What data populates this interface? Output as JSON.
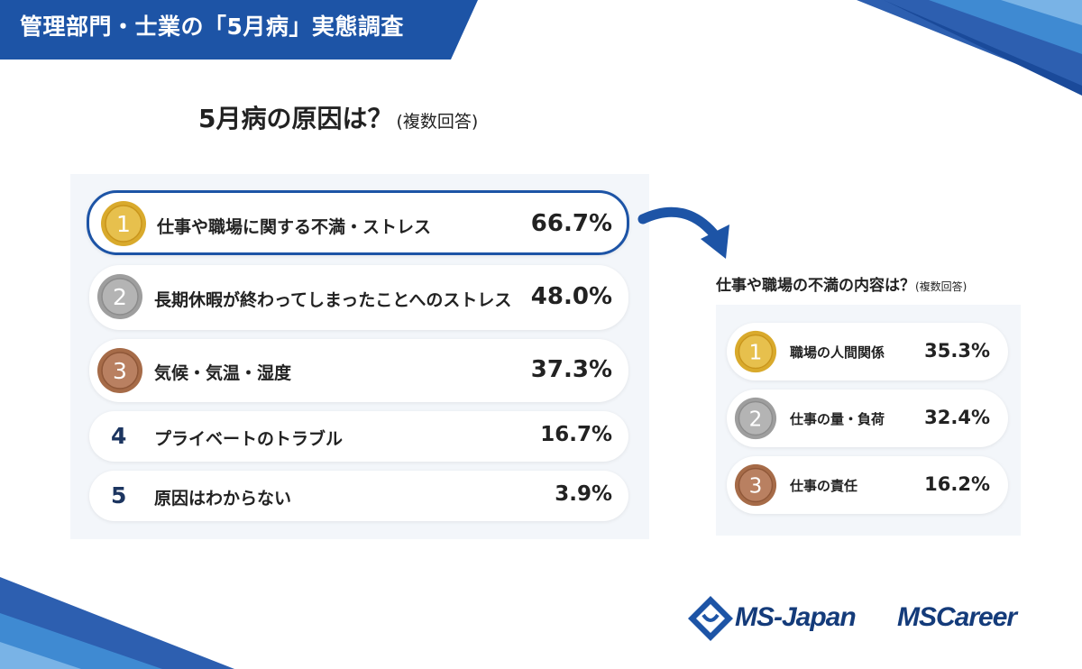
{
  "header": {
    "title": "管理部門・士業の「5月病」実態調査"
  },
  "main": {
    "title": "5月病の原因は？",
    "title_note": "(複数回答)"
  },
  "chart_data": [
    {
      "type": "table",
      "title": "5月病の原因は？(複数回答)",
      "categories": [
        "仕事や職場に関する不満・ストレス",
        "長期休暇が終わってしまったことへのストレス",
        "気候・気温・湿度",
        "プライベートのトラブル",
        "原因はわからない"
      ],
      "values": [
        66.7,
        48.0,
        37.3,
        16.7,
        3.9
      ],
      "value_labels": [
        "66.7%",
        "48.0%",
        "37.3%",
        "16.7%",
        "3.9%"
      ],
      "ranks": [
        "1",
        "2",
        "3",
        "4",
        "5"
      ],
      "highlight": "仕事や職場に関する不満・ストレス"
    },
    {
      "type": "table",
      "title": "仕事や職場の不満の内容は？(複数回答)",
      "categories": [
        "職場の人間関係",
        "仕事の量・負荷",
        "仕事の責任"
      ],
      "values": [
        35.3,
        32.4,
        16.2
      ],
      "value_labels": [
        "35.3%",
        "32.4%",
        "16.2%"
      ],
      "ranks": [
        "1",
        "2",
        "3"
      ]
    }
  ],
  "sub": {
    "title": "仕事や職場の不満の内容は？",
    "title_note": "(複数回答)"
  },
  "logos": {
    "ms_japan": "MS-Japan",
    "ms_career": "MSCareer"
  },
  "colors": {
    "brand_blue": "#1d54a6",
    "gold": "#d9aa2c",
    "silver": "#9e9e9e",
    "bronze": "#a66b48",
    "rank_navy": "#1c3560"
  },
  "icons": {
    "medal": "medal-icon",
    "arrow": "curved-arrow-icon",
    "logo": "ms-japan-logo-icon"
  }
}
